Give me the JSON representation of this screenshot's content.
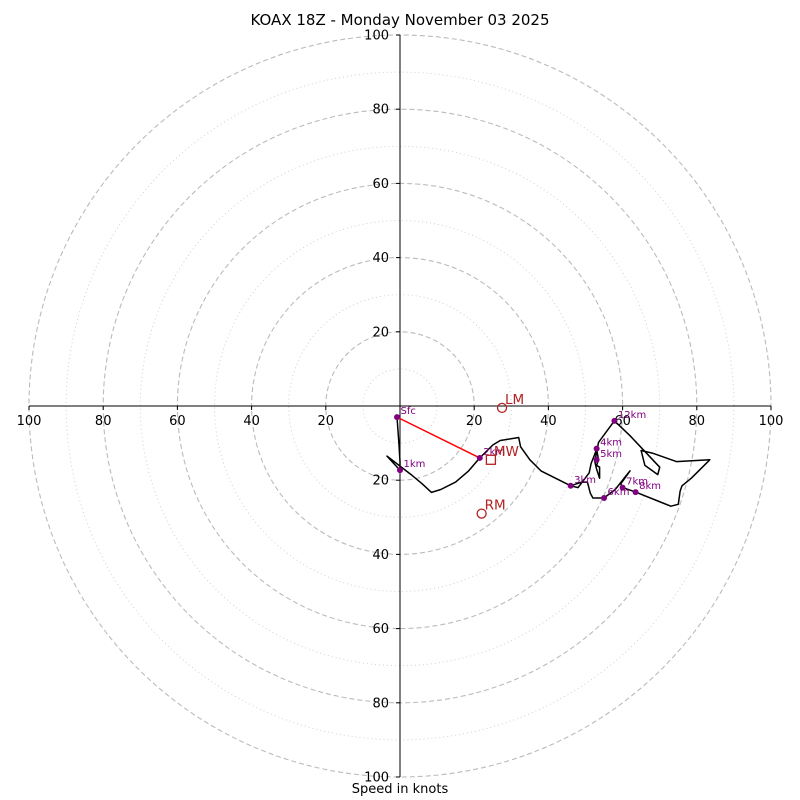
{
  "chart_data": {
    "type": "hodograph",
    "title": "KOAX 18Z - Monday November 03 2025",
    "xlabel": "Speed in knots",
    "xlim": [
      -100,
      100
    ],
    "ylim": [
      -100,
      100
    ],
    "rings": {
      "major": [
        20,
        40,
        60,
        80,
        100
      ],
      "minor": [
        10,
        30,
        50,
        70,
        90
      ]
    },
    "x_tick_labels": [
      "100",
      "80",
      "60",
      "40",
      "20",
      "20",
      "40",
      "60",
      "80",
      "100"
    ],
    "x_tick_values": [
      -100,
      -80,
      -60,
      -40,
      -20,
      20,
      40,
      60,
      80,
      100
    ],
    "y_tick_labels": [
      "100",
      "80",
      "60",
      "40",
      "20",
      "20",
      "40",
      "60",
      "80",
      "100"
    ],
    "y_tick_values": [
      100,
      80,
      60,
      40,
      20,
      -20,
      -40,
      -60,
      -80,
      -100
    ],
    "hodograph_line": [
      [
        -0.8,
        -3
      ],
      [
        -0.3,
        -10
      ],
      [
        0,
        -15
      ],
      [
        0,
        -17.3
      ],
      [
        -3.5,
        -13.5
      ],
      [
        3,
        -18.5
      ],
      [
        6,
        -21
      ],
      [
        8.5,
        -23.3
      ],
      [
        11,
        -22.5
      ],
      [
        15,
        -20.5
      ],
      [
        18.5,
        -17.5
      ],
      [
        21.5,
        -14
      ],
      [
        25,
        -10.5
      ],
      [
        27,
        -9.3
      ],
      [
        32,
        -8.5
      ],
      [
        32.5,
        -11
      ],
      [
        35,
        -14.5
      ],
      [
        38,
        -17.5
      ],
      [
        46,
        -21.5
      ],
      [
        48,
        -22
      ],
      [
        51,
        -18
      ],
      [
        51.5,
        -15.5
      ],
      [
        52.5,
        -13
      ],
      [
        53,
        -11.5
      ],
      [
        53.5,
        -14.5
      ],
      [
        53,
        -16
      ],
      [
        53.8,
        -16.5
      ],
      [
        53.8,
        -19.5
      ],
      [
        53,
        -17
      ],
      [
        52.5,
        -15
      ],
      [
        53.2,
        -11.5
      ],
      [
        53.5,
        -9.8
      ],
      [
        57.8,
        -4
      ],
      [
        62,
        -8
      ],
      [
        70,
        -16.5
      ],
      [
        69.5,
        -18.5
      ],
      [
        66,
        -16
      ],
      [
        65,
        -12
      ],
      [
        68,
        -12.7
      ],
      [
        74.5,
        -15
      ],
      [
        83.5,
        -14.5
      ],
      [
        78.5,
        -19.5
      ],
      [
        76,
        -21.5
      ],
      [
        75.5,
        -23
      ],
      [
        75,
        -26.5
      ],
      [
        73,
        -27
      ],
      [
        70.5,
        -26
      ],
      [
        63.5,
        -23.2
      ],
      [
        60,
        -22
      ],
      [
        59.5,
        -21
      ],
      [
        62,
        -17.5
      ],
      [
        58,
        -22.5
      ],
      [
        55,
        -24.8
      ],
      [
        52,
        -24.8
      ],
      [
        51.3,
        -23.5
      ],
      [
        50.5,
        -20.5
      ],
      [
        49,
        -20.5
      ],
      [
        46,
        -21.5
      ]
    ],
    "height_markers": [
      {
        "label": "Sfc",
        "u": -0.8,
        "v": -3
      },
      {
        "label": "1km",
        "u": 0,
        "v": -17.3
      },
      {
        "label": "2km",
        "u": 21.5,
        "v": -14
      },
      {
        "label": "3km",
        "u": 46,
        "v": -21.5
      },
      {
        "label": "4km",
        "u": 53,
        "v": -11.5
      },
      {
        "label": "5km",
        "u": 53,
        "v": -14.5
      },
      {
        "label": "6km",
        "u": 55,
        "v": -24.8
      },
      {
        "label": "7km",
        "u": 60,
        "v": -22
      },
      {
        "label": "8km",
        "u": 63.5,
        "v": -23.2
      },
      {
        "label": "12km",
        "u": 57.8,
        "v": -4
      }
    ],
    "motion_markers": [
      {
        "label": "LM",
        "u": 27.5,
        "v": -0.5,
        "shape": "circle"
      },
      {
        "label": "MW",
        "u": 24.5,
        "v": -14.5,
        "shape": "square"
      },
      {
        "label": "RM",
        "u": 22,
        "v": -29,
        "shape": "circle"
      }
    ],
    "shear_vector": {
      "from": [
        -0.8,
        -3
      ],
      "to": [
        21.5,
        -14
      ]
    },
    "colors": {
      "ring": "#bbbbbb",
      "hodograph": "#000000",
      "height_marker": "#800080",
      "motion": "#b22222",
      "shear_vector": "#ff0000"
    }
  }
}
